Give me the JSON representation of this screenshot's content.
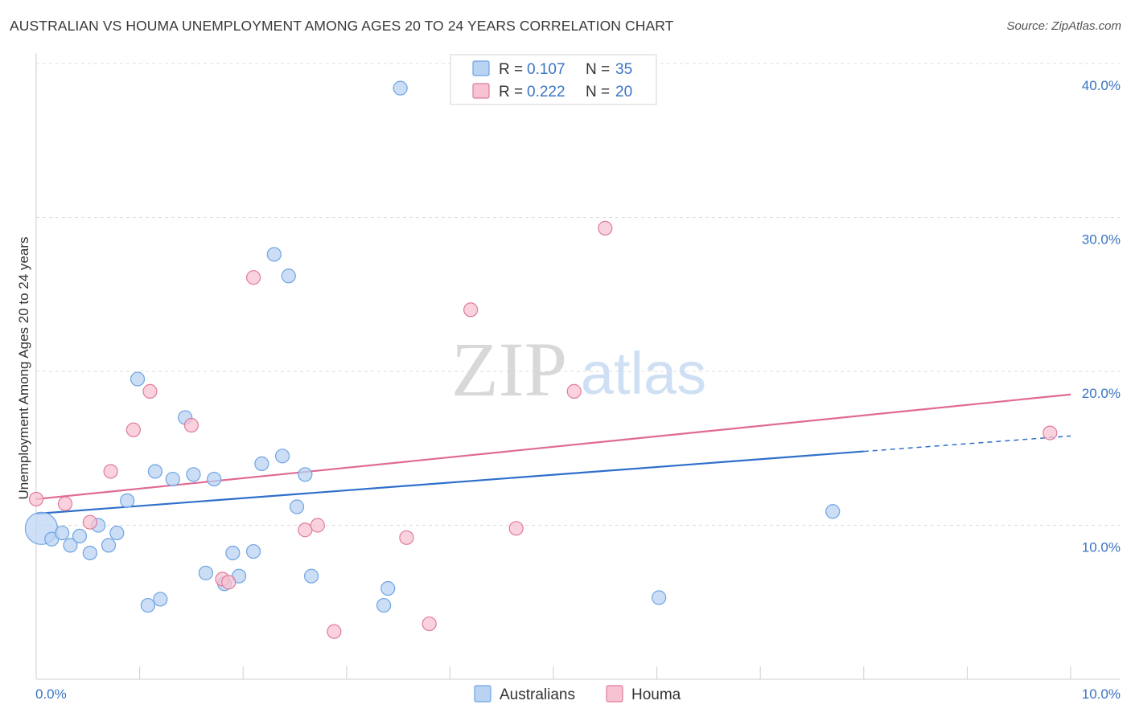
{
  "header": {
    "title": "AUSTRALIAN VS HOUMA UNEMPLOYMENT AMONG AGES 20 TO 24 YEARS CORRELATION CHART",
    "source": "Source: ZipAtlas.com"
  },
  "watermark": {
    "zip": "ZIP",
    "atlas": "atlas"
  },
  "legend": {
    "r_label": "R =",
    "n_label": "N =",
    "items": [
      {
        "name": "Australians",
        "r": "0.107",
        "n": "35",
        "color": "#6fa4e3",
        "fill": "#b9d3f3"
      },
      {
        "name": "Houma",
        "r": "0.222",
        "n": "20",
        "color": "#e07b9b",
        "fill": "#f7c3d3"
      }
    ]
  },
  "chart_data": {
    "type": "scatter",
    "title": "AUSTRALIAN VS HOUMA UNEMPLOYMENT AMONG AGES 20 TO 24 YEARS CORRELATION CHART",
    "xlabel": "",
    "ylabel": "Unemployment Among Ages 20 to 24 years",
    "xlim": [
      0,
      10
    ],
    "ylim": [
      0,
      40
    ],
    "x_tick_labels": [
      "0.0%",
      "10.0%"
    ],
    "y_tick_labels": [
      "10.0%",
      "20.0%",
      "30.0%",
      "40.0%"
    ],
    "y_ticks": [
      10,
      20,
      30,
      40
    ],
    "series": [
      {
        "name": "Australians",
        "color": "#3a74c4",
        "points": [
          [
            0.05,
            9.8
          ],
          [
            0.15,
            9.1
          ],
          [
            0.25,
            9.5
          ],
          [
            0.33,
            8.7
          ],
          [
            0.42,
            9.3
          ],
          [
            0.52,
            8.2
          ],
          [
            0.6,
            10.0
          ],
          [
            0.7,
            8.7
          ],
          [
            0.78,
            9.5
          ],
          [
            0.88,
            11.6
          ],
          [
            0.98,
            19.5
          ],
          [
            1.08,
            4.8
          ],
          [
            1.2,
            5.2
          ],
          [
            1.32,
            13.0
          ],
          [
            1.44,
            17.0
          ],
          [
            1.52,
            13.3
          ],
          [
            1.64,
            6.9
          ],
          [
            1.72,
            13.0
          ],
          [
            1.82,
            6.2
          ],
          [
            1.9,
            8.2
          ],
          [
            1.96,
            6.7
          ],
          [
            2.1,
            8.3
          ],
          [
            2.18,
            14.0
          ],
          [
            2.3,
            27.6
          ],
          [
            2.38,
            14.5
          ],
          [
            2.44,
            26.2
          ],
          [
            2.52,
            11.2
          ],
          [
            2.6,
            13.3
          ],
          [
            2.66,
            6.7
          ],
          [
            3.4,
            5.9
          ],
          [
            3.52,
            38.4
          ],
          [
            3.36,
            4.8
          ],
          [
            6.02,
            5.3
          ],
          [
            7.7,
            10.9
          ],
          [
            1.15,
            13.5
          ]
        ],
        "trend": {
          "x0": 0,
          "y0": 10.75,
          "x1": 8.0,
          "y1": 14.8,
          "dash_to_x": 10.0,
          "dash_to_y": 15.8
        }
      },
      {
        "name": "Houma",
        "color": "#e07b9b",
        "points": [
          [
            0.0,
            11.7
          ],
          [
            0.28,
            11.4
          ],
          [
            0.52,
            10.2
          ],
          [
            0.72,
            13.5
          ],
          [
            0.94,
            16.2
          ],
          [
            1.1,
            18.7
          ],
          [
            1.5,
            16.5
          ],
          [
            1.8,
            6.5
          ],
          [
            1.86,
            6.3
          ],
          [
            2.1,
            26.1
          ],
          [
            2.6,
            9.7
          ],
          [
            2.72,
            10.0
          ],
          [
            2.88,
            3.1
          ],
          [
            3.58,
            9.2
          ],
          [
            3.8,
            3.6
          ],
          [
            4.2,
            24.0
          ],
          [
            4.64,
            9.8
          ],
          [
            5.2,
            18.7
          ],
          [
            5.5,
            29.3
          ],
          [
            9.8,
            16.0
          ]
        ],
        "trend": {
          "x0": 0,
          "y0": 11.7,
          "x1": 10.0,
          "y1": 18.5
        }
      }
    ]
  }
}
